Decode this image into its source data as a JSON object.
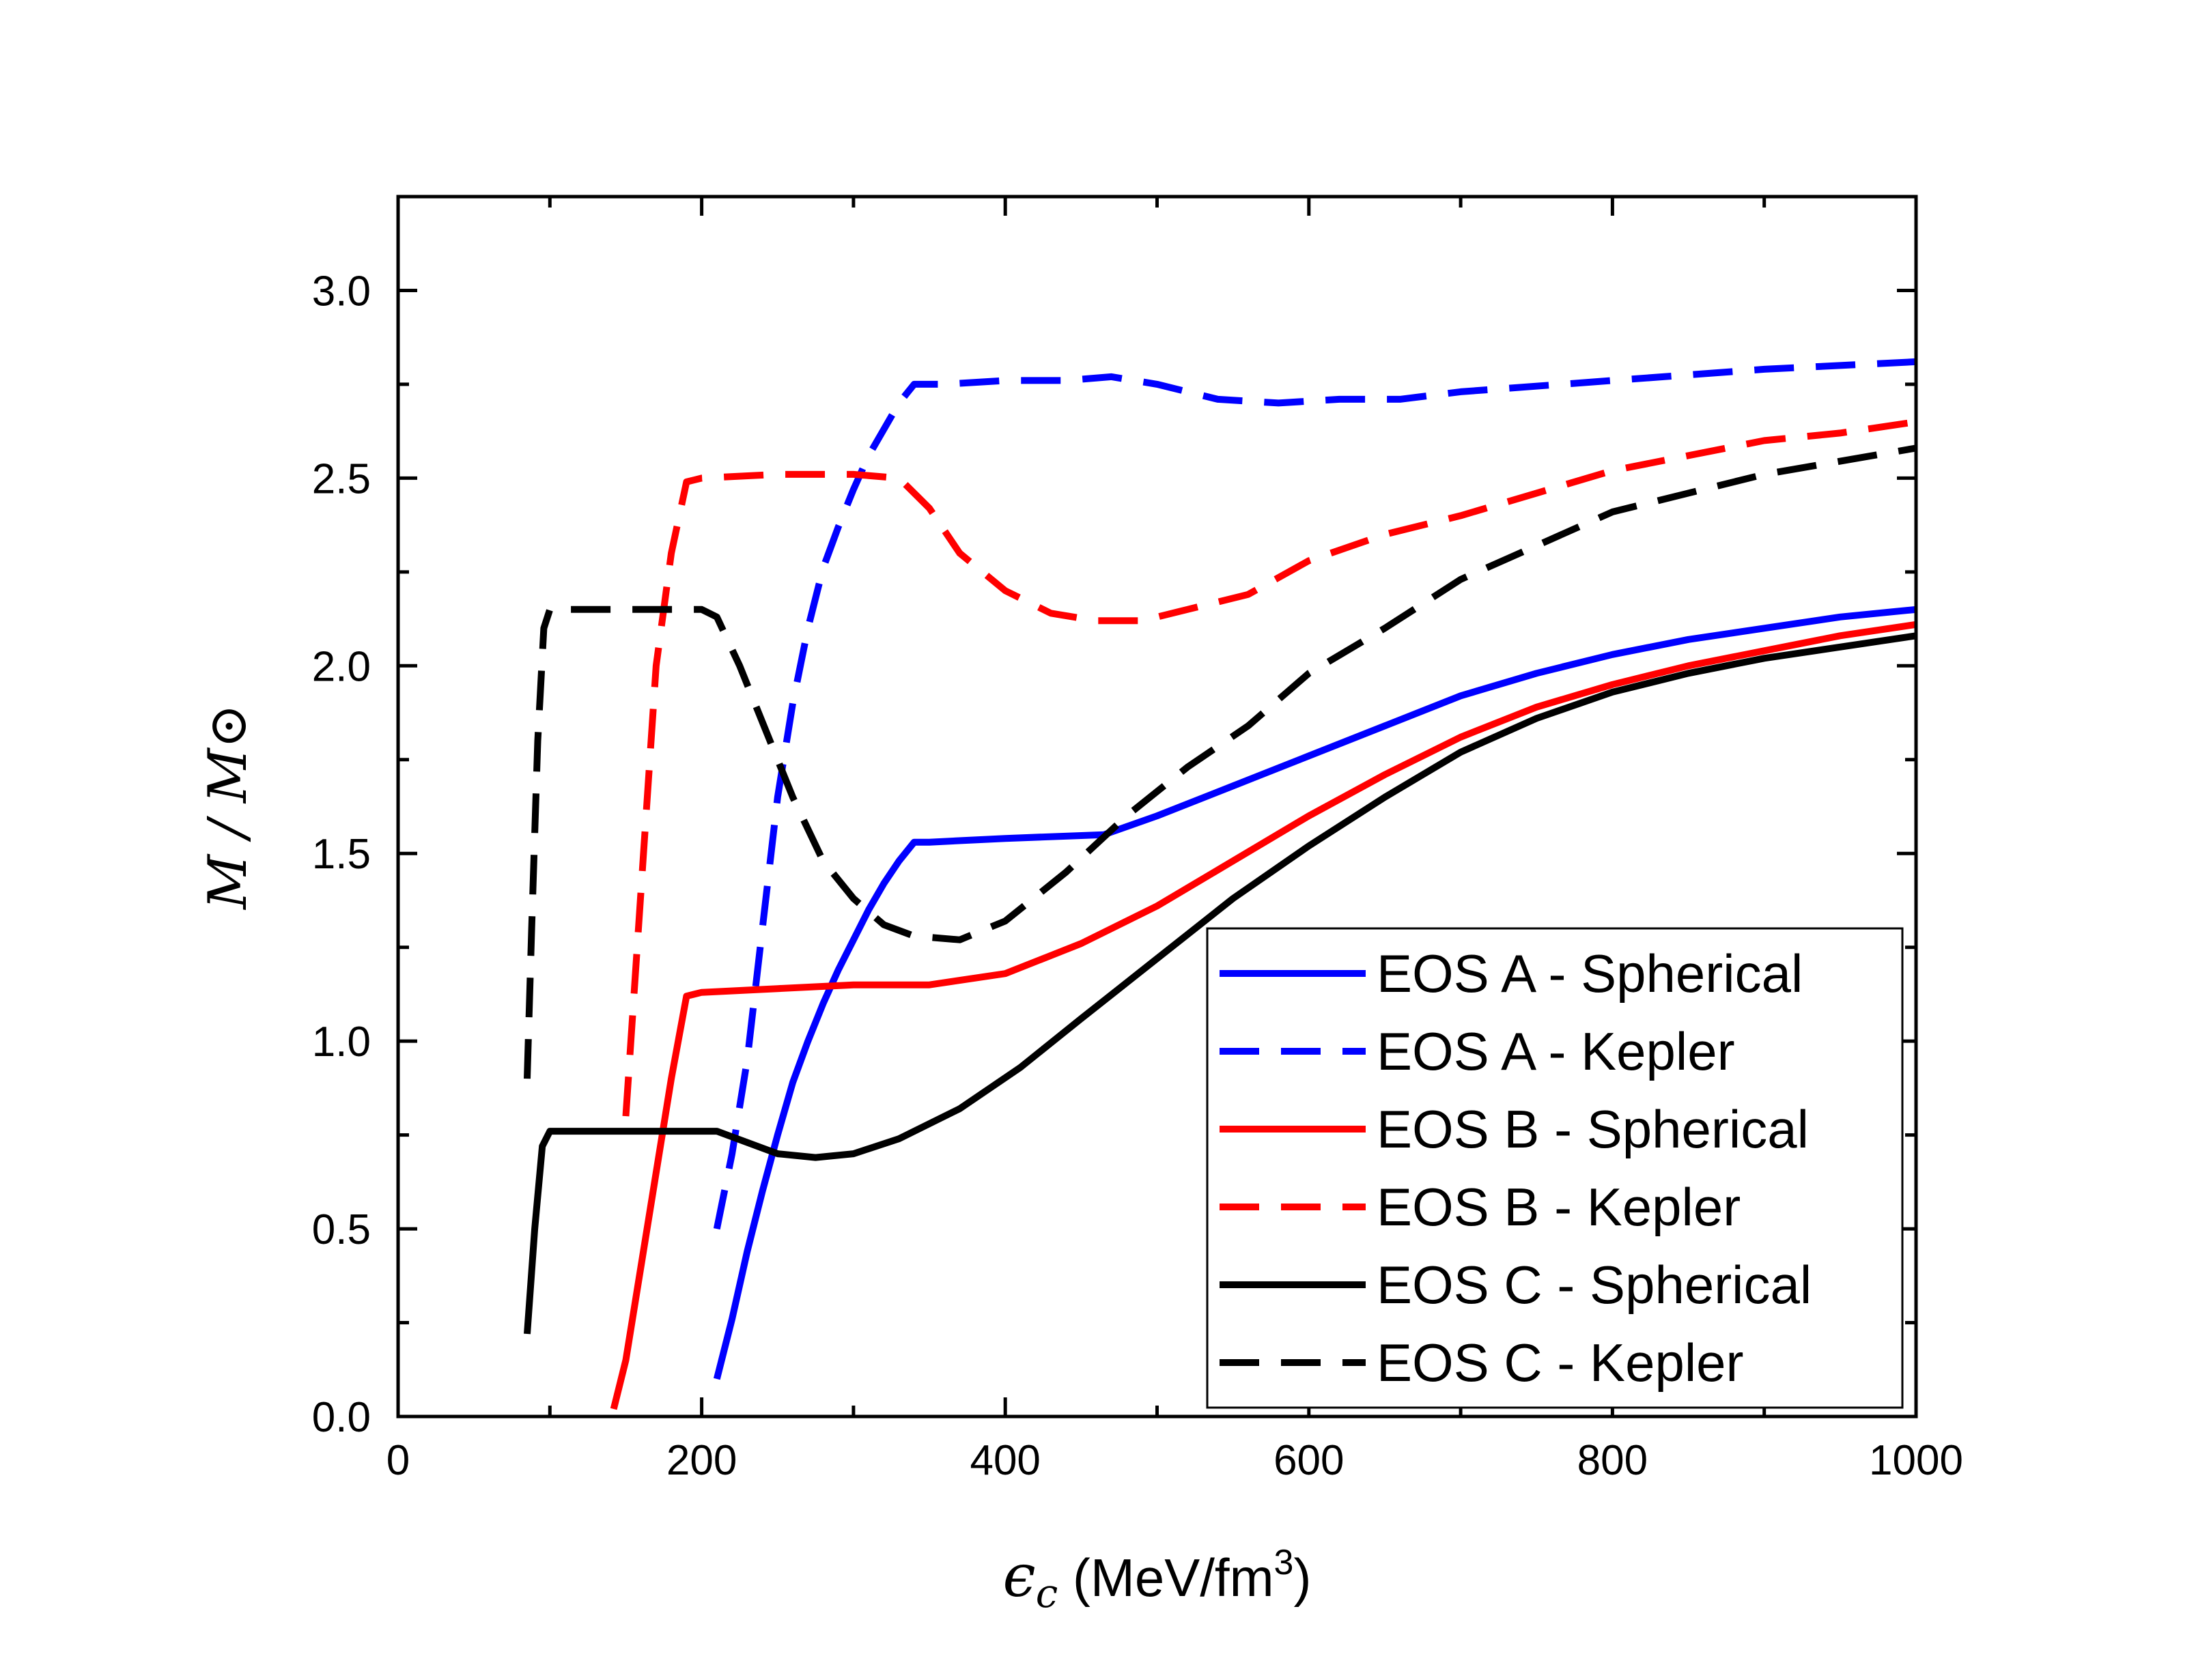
{
  "chart_data": {
    "type": "line",
    "title": "",
    "xlabel": "εc (MeV/fm3)",
    "xlabel_parts": {
      "symbol": "ϵ",
      "subscript": "c",
      "unit_prefix": " (MeV/fm",
      "superscript": "3",
      "unit_suffix": ")"
    },
    "ylabel": "M / M⊙",
    "xlim": [
      0,
      1000
    ],
    "ylim": [
      0,
      3.25
    ],
    "xticks": [
      0,
      200,
      400,
      600,
      800,
      1000
    ],
    "xtick_labels": [
      "0",
      "200",
      "400",
      "600",
      "800",
      "1000"
    ],
    "yticks": [
      0.0,
      0.5,
      1.0,
      1.5,
      2.0,
      2.5,
      3.0
    ],
    "ytick_labels": [
      "0.0",
      "0.5",
      "1.0",
      "1.5",
      "2.0",
      "2.5",
      "3.0"
    ],
    "grid": false,
    "legend_position": "lower-right",
    "series": [
      {
        "name": "EOS A - Spherical",
        "color": "#0000ff",
        "dash": "solid",
        "x": [
          210,
          220,
          230,
          240,
          250,
          260,
          270,
          280,
          290,
          300,
          310,
          320,
          330,
          340,
          350,
          400,
          465,
          500,
          550,
          600,
          650,
          700,
          750,
          800,
          850,
          900,
          950,
          1000
        ],
        "y": [
          0.1,
          0.26,
          0.44,
          0.6,
          0.75,
          0.89,
          1.0,
          1.1,
          1.19,
          1.27,
          1.35,
          1.42,
          1.48,
          1.53,
          1.53,
          1.54,
          1.55,
          1.6,
          1.68,
          1.76,
          1.84,
          1.92,
          1.98,
          2.03,
          2.07,
          2.1,
          2.13,
          2.15
        ]
      },
      {
        "name": "EOS A - Kepler",
        "color": "#0000ff",
        "dash": "dashed",
        "x": [
          210,
          220,
          230,
          240,
          250,
          260,
          270,
          280,
          290,
          300,
          310,
          320,
          330,
          340,
          360,
          400,
          440,
          470,
          500,
          540,
          580,
          620,
          660,
          700,
          800,
          900,
          1000
        ],
        "y": [
          0.5,
          0.7,
          0.95,
          1.3,
          1.65,
          1.9,
          2.1,
          2.26,
          2.37,
          2.47,
          2.56,
          2.63,
          2.7,
          2.75,
          2.75,
          2.76,
          2.76,
          2.77,
          2.75,
          2.71,
          2.7,
          2.71,
          2.71,
          2.73,
          2.76,
          2.79,
          2.81
        ]
      },
      {
        "name": "EOS B - Spherical",
        "color": "#ff0000",
        "dash": "solid",
        "x": [
          142,
          150,
          160,
          170,
          180,
          190,
          200,
          250,
          300,
          350,
          400,
          450,
          500,
          550,
          600,
          650,
          700,
          750,
          800,
          850,
          900,
          950,
          1000
        ],
        "y": [
          0.02,
          0.15,
          0.4,
          0.65,
          0.9,
          1.12,
          1.13,
          1.14,
          1.15,
          1.15,
          1.18,
          1.26,
          1.36,
          1.48,
          1.6,
          1.71,
          1.81,
          1.89,
          1.95,
          2.0,
          2.04,
          2.08,
          2.11
        ]
      },
      {
        "name": "EOS B - Kepler",
        "color": "#ff0000",
        "dash": "dashed",
        "x": [
          150,
          160,
          170,
          180,
          190,
          200,
          250,
          300,
          330,
          350,
          370,
          400,
          430,
          460,
          490,
          520,
          560,
          600,
          650,
          700,
          750,
          800,
          850,
          900,
          950,
          1000
        ],
        "y": [
          0.8,
          1.4,
          2.0,
          2.3,
          2.49,
          2.5,
          2.51,
          2.51,
          2.5,
          2.42,
          2.3,
          2.2,
          2.14,
          2.12,
          2.12,
          2.15,
          2.19,
          2.28,
          2.35,
          2.4,
          2.46,
          2.52,
          2.56,
          2.6,
          2.62,
          2.65
        ]
      },
      {
        "name": "EOS C - Spherical",
        "color": "#000000",
        "dash": "solid",
        "x": [
          85,
          90,
          95,
          100,
          150,
          200,
          210,
          230,
          250,
          275,
          300,
          330,
          370,
          410,
          450,
          500,
          550,
          600,
          650,
          700,
          750,
          800,
          850,
          900,
          950,
          1000
        ],
        "y": [
          0.22,
          0.5,
          0.72,
          0.76,
          0.76,
          0.76,
          0.76,
          0.73,
          0.7,
          0.69,
          0.7,
          0.74,
          0.82,
          0.93,
          1.06,
          1.22,
          1.38,
          1.52,
          1.65,
          1.77,
          1.86,
          1.93,
          1.98,
          2.02,
          2.05,
          2.08
        ]
      },
      {
        "name": "EOS C - Kepler",
        "color": "#000000",
        "dash": "dashed",
        "x": [
          85,
          88,
          92,
          96,
          100,
          150,
          200,
          210,
          225,
          240,
          260,
          280,
          300,
          320,
          340,
          370,
          400,
          440,
          480,
          520,
          560,
          600,
          650,
          700,
          800,
          900,
          1000
        ],
        "y": [
          0.9,
          1.3,
          1.8,
          2.1,
          2.15,
          2.15,
          2.15,
          2.13,
          2.0,
          1.85,
          1.65,
          1.48,
          1.38,
          1.31,
          1.28,
          1.27,
          1.32,
          1.45,
          1.6,
          1.73,
          1.84,
          1.98,
          2.1,
          2.23,
          2.41,
          2.51,
          2.58
        ]
      }
    ]
  }
}
